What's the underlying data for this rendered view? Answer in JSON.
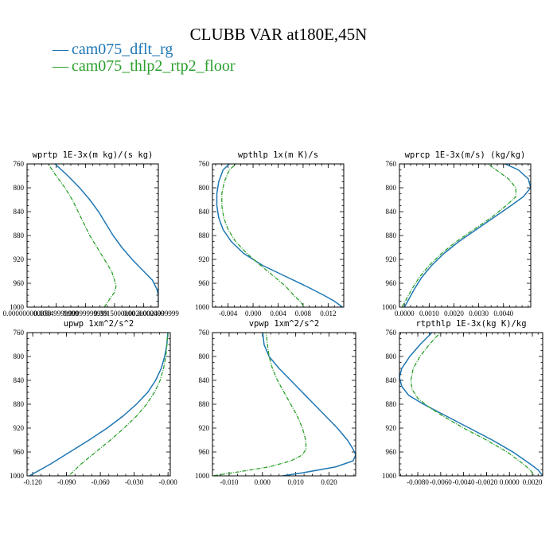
{
  "figure": {
    "title": "CLUBB VAR at180E,45N",
    "legend": [
      {
        "dash": "—",
        "label": "cam075_dflt_rg",
        "color": "#1f77b4"
      },
      {
        "dash": "—",
        "label": "cam075_thlp2_rtp2_floor",
        "color": "#2ca02c"
      }
    ]
  },
  "chart_data": [
    {
      "type": "line",
      "title": "wprtp  1E-3x(m kg)/(s kg)",
      "xlim": [
        5e-11,
        9.5e-10
      ],
      "ylim": [
        760,
        1000
      ],
      "y_inverted": true,
      "xticks": [
        {
          "v": 5e-11,
          "label": "0.000000000050"
        },
        {
          "v": 2.5e-10,
          "label": "0.00049999999"
        },
        {
          "v": 4.5e-10,
          "label": "0.00099999999"
        },
        {
          "v": 6.5e-10,
          "label": "0.0015000000"
        },
        {
          "v": 8.5e-10,
          "label": "0.0020000000"
        },
        {
          "v": 9.5e-10,
          "label": "0.0024999999"
        }
      ],
      "yticks": [
        760,
        800,
        840,
        880,
        920,
        960,
        1000
      ],
      "series": [
        {
          "color": "#1f77b4",
          "y": [
            755,
            780,
            800,
            820,
            840,
            860,
            880,
            900,
            920,
            940,
            955,
            970,
            980,
            990,
            1000
          ],
          "x": [
            2.2e-10,
            3.3e-10,
            4.1e-10,
            4.8e-10,
            5.4e-10,
            5.9e-10,
            6.4e-10,
            7e-10,
            7.7e-10,
            8.5e-10,
            9.1e-10,
            9.4e-10,
            9.5e-10,
            9.5e-10,
            9.5e-10
          ]
        },
        {
          "color": "#2ca02c",
          "y": [
            755,
            780,
            800,
            820,
            840,
            860,
            880,
            900,
            920,
            940,
            955,
            965,
            975,
            985,
            1000
          ],
          "x": [
            1.8e-10,
            2.5e-10,
            3.1e-10,
            3.6e-10,
            4e-10,
            4.4e-10,
            4.8e-10,
            5.3e-10,
            5.8e-10,
            6.3e-10,
            6.5e-10,
            6.6e-10,
            6.5e-10,
            6.2e-10,
            5.8e-10
          ]
        }
      ]
    },
    {
      "type": "line",
      "title": "wpthlp  1x(m K)/s",
      "xlim": [
        -0.0065,
        0.0145
      ],
      "ylim": [
        760,
        1000
      ],
      "y_inverted": true,
      "xticks": [
        {
          "v": -0.004,
          "label": "-0.004"
        },
        {
          "v": 0.0,
          "label": "0.000"
        },
        {
          "v": 0.004,
          "label": "0.004"
        },
        {
          "v": 0.008,
          "label": "0.008"
        },
        {
          "v": 0.012,
          "label": "0.012"
        }
      ],
      "yticks": [
        760,
        800,
        840,
        880,
        920,
        960,
        1000
      ],
      "series": [
        {
          "color": "#1f77b4",
          "y": [
            755,
            770,
            790,
            810,
            830,
            850,
            870,
            890,
            910,
            930,
            950,
            965,
            980,
            990,
            1000
          ],
          "x": [
            -0.0033,
            -0.0048,
            -0.0055,
            -0.0058,
            -0.0058,
            -0.0055,
            -0.0048,
            -0.0035,
            -0.0015,
            0.0015,
            0.0055,
            0.0085,
            0.0113,
            0.013,
            0.0143
          ]
        },
        {
          "color": "#2ca02c",
          "y": [
            755,
            770,
            790,
            810,
            830,
            850,
            870,
            890,
            910,
            930,
            950,
            965,
            980,
            990,
            1000
          ],
          "x": [
            -0.0022,
            -0.0038,
            -0.0046,
            -0.005,
            -0.005,
            -0.0047,
            -0.004,
            -0.0028,
            -0.001,
            0.0012,
            0.0035,
            0.0052,
            0.0065,
            0.0075,
            0.0082
          ]
        }
      ]
    },
    {
      "type": "line",
      "title": "wprcp  1E-3x(m/s) (kg/kg)",
      "xlim": [
        -0.0002,
        0.0051
      ],
      "ylim": [
        760,
        1000
      ],
      "y_inverted": true,
      "xticks": [
        {
          "v": 0.0,
          "label": "0.0000"
        },
        {
          "v": 0.001,
          "label": "0.0010"
        },
        {
          "v": 0.002,
          "label": "0.0020"
        },
        {
          "v": 0.003,
          "label": "0.0030"
        },
        {
          "v": 0.004,
          "label": "0.0040"
        }
      ],
      "yticks": [
        760,
        800,
        840,
        880,
        920,
        960,
        1000
      ],
      "series": [
        {
          "color": "#1f77b4",
          "y": [
            755,
            770,
            785,
            800,
            815,
            830,
            850,
            870,
            890,
            910,
            930,
            950,
            970,
            985,
            1000
          ],
          "x": [
            0.0038,
            0.0046,
            0.005,
            0.0051,
            0.0048,
            0.0043,
            0.0036,
            0.0029,
            0.0022,
            0.0016,
            0.0011,
            0.0007,
            0.0004,
            0.0002,
            0.0
          ]
        },
        {
          "color": "#2ca02c",
          "y": [
            755,
            770,
            785,
            800,
            815,
            830,
            850,
            870,
            890,
            910,
            930,
            950,
            970,
            985,
            1000
          ],
          "x": [
            0.0032,
            0.0037,
            0.0042,
            0.0045,
            0.0045,
            0.0041,
            0.0035,
            0.0028,
            0.0021,
            0.0015,
            0.001,
            0.0006,
            0.0003,
            0.0001,
            -0.0001
          ]
        }
      ]
    },
    {
      "type": "line",
      "title": "upwp  1xm^2/s^2",
      "xlim": [
        -0.125,
        0.002
      ],
      "ylim": [
        760,
        1000
      ],
      "y_inverted": true,
      "xticks": [
        {
          "v": -0.12,
          "label": "-0.120"
        },
        {
          "v": -0.09,
          "label": "-0.090"
        },
        {
          "v": -0.06,
          "label": "-0.060"
        },
        {
          "v": -0.03,
          "label": "-0.030"
        },
        {
          "v": 0.0,
          "label": "-0.000"
        }
      ],
      "yticks": [
        760,
        800,
        840,
        880,
        920,
        960,
        1000
      ],
      "series": [
        {
          "color": "#1f77b4",
          "y": [
            755,
            780,
            800,
            820,
            840,
            860,
            880,
            900,
            920,
            940,
            960,
            980,
            1000
          ],
          "x": [
            0.0,
            -0.001,
            -0.003,
            -0.006,
            -0.011,
            -0.018,
            -0.028,
            -0.04,
            -0.054,
            -0.07,
            -0.087,
            -0.104,
            -0.123
          ]
        },
        {
          "color": "#2ca02c",
          "y": [
            755,
            780,
            800,
            820,
            840,
            860,
            880,
            900,
            920,
            940,
            960,
            980,
            1000
          ],
          "x": [
            0.0,
            -0.001,
            -0.002,
            -0.004,
            -0.007,
            -0.012,
            -0.019,
            -0.028,
            -0.039,
            -0.051,
            -0.064,
            -0.077,
            -0.088
          ]
        }
      ]
    },
    {
      "type": "line",
      "title": "vpwp  1xm^2/s^2",
      "xlim": [
        -0.015,
        0.028
      ],
      "ylim": [
        760,
        1000
      ],
      "y_inverted": true,
      "xticks": [
        {
          "v": -0.01,
          "label": "-0.010"
        },
        {
          "v": 0.0,
          "label": "0.000"
        },
        {
          "v": 0.01,
          "label": "0.010"
        },
        {
          "v": 0.02,
          "label": "0.020"
        }
      ],
      "yticks": [
        760,
        800,
        840,
        880,
        920,
        960,
        1000
      ],
      "series": [
        {
          "color": "#1f77b4",
          "y": [
            755,
            780,
            800,
            820,
            840,
            860,
            880,
            900,
            920,
            940,
            955,
            965,
            975,
            985,
            995,
            1000
          ],
          "x": [
            0.0,
            0.0005,
            0.002,
            0.005,
            0.0085,
            0.012,
            0.0155,
            0.019,
            0.0225,
            0.0255,
            0.0272,
            0.028,
            0.0272,
            0.022,
            0.012,
            0.006
          ]
        },
        {
          "color": "#2ca02c",
          "y": [
            755,
            780,
            800,
            820,
            840,
            860,
            880,
            900,
            920,
            940,
            955,
            965,
            975,
            985,
            995,
            1000
          ],
          "x": [
            0.001,
            0.0015,
            0.002,
            0.003,
            0.0045,
            0.0065,
            0.0085,
            0.0105,
            0.012,
            0.013,
            0.0131,
            0.012,
            0.0085,
            0.002,
            -0.009,
            -0.015
          ]
        }
      ]
    },
    {
      "type": "line",
      "title": "rtpthlp  1E-3x(kg K)/kg",
      "xlim": [
        -0.0096,
        0.0029
      ],
      "ylim": [
        760,
        1000
      ],
      "y_inverted": true,
      "xticks": [
        {
          "v": -0.008,
          "label": "-0.0080"
        },
        {
          "v": -0.006,
          "label": "-0.0060"
        },
        {
          "v": -0.004,
          "label": "-0.0040"
        },
        {
          "v": -0.002,
          "label": "-0.0020"
        },
        {
          "v": 0.0,
          "label": "0.0000"
        },
        {
          "v": 0.002,
          "label": "0.0020"
        }
      ],
      "yticks": [
        760,
        800,
        840,
        880,
        920,
        960,
        1000
      ],
      "series": [
        {
          "color": "#1f77b4",
          "y": [
            755,
            780,
            800,
            820,
            835,
            850,
            865,
            880,
            900,
            920,
            940,
            960,
            980,
            990,
            1000
          ],
          "x": [
            -0.0065,
            -0.0078,
            -0.0087,
            -0.0094,
            -0.0096,
            -0.0094,
            -0.0088,
            -0.0075,
            -0.0055,
            -0.0035,
            -0.0015,
            0.0003,
            0.0018,
            0.0025,
            0.0029
          ]
        },
        {
          "color": "#2ca02c",
          "y": [
            755,
            780,
            800,
            820,
            840,
            855,
            870,
            885,
            900,
            920,
            940,
            960,
            980,
            990,
            1000
          ],
          "x": [
            -0.0058,
            -0.007,
            -0.0078,
            -0.0084,
            -0.0086,
            -0.0085,
            -0.008,
            -0.007,
            -0.0058,
            -0.004,
            -0.002,
            -0.0002,
            0.0012,
            0.0018,
            0.0022
          ]
        }
      ]
    }
  ]
}
